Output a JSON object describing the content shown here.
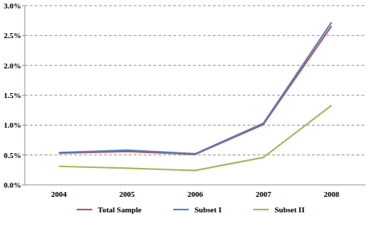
{
  "chart_data": {
    "type": "line",
    "categories": [
      "2004",
      "2005",
      "2006",
      "2007",
      "2008"
    ],
    "series": [
      {
        "name": "Total Sample",
        "color": "#c0504d",
        "values": [
          0.53,
          0.56,
          0.51,
          1.01,
          2.66
        ]
      },
      {
        "name": "Subset I",
        "color": "#4f81bd",
        "values": [
          0.54,
          0.58,
          0.52,
          1.03,
          2.72
        ]
      },
      {
        "name": "Subset II",
        "color": "#9bbb59",
        "values": [
          0.31,
          0.28,
          0.24,
          0.46,
          1.33
        ]
      }
    ],
    "ylim": [
      0,
      3
    ],
    "yticks": [
      {
        "value": 0,
        "label": "0.0%"
      },
      {
        "value": 0.5,
        "label": "0.5%"
      },
      {
        "value": 1,
        "label": "1.0%"
      },
      {
        "value": 1.5,
        "label": "1.5%"
      },
      {
        "value": 2,
        "label": "2.0%"
      },
      {
        "value": 2.5,
        "label": "2.5%"
      },
      {
        "value": 3,
        "label": "3.0%"
      }
    ],
    "grid": true,
    "legend": "bottom"
  }
}
